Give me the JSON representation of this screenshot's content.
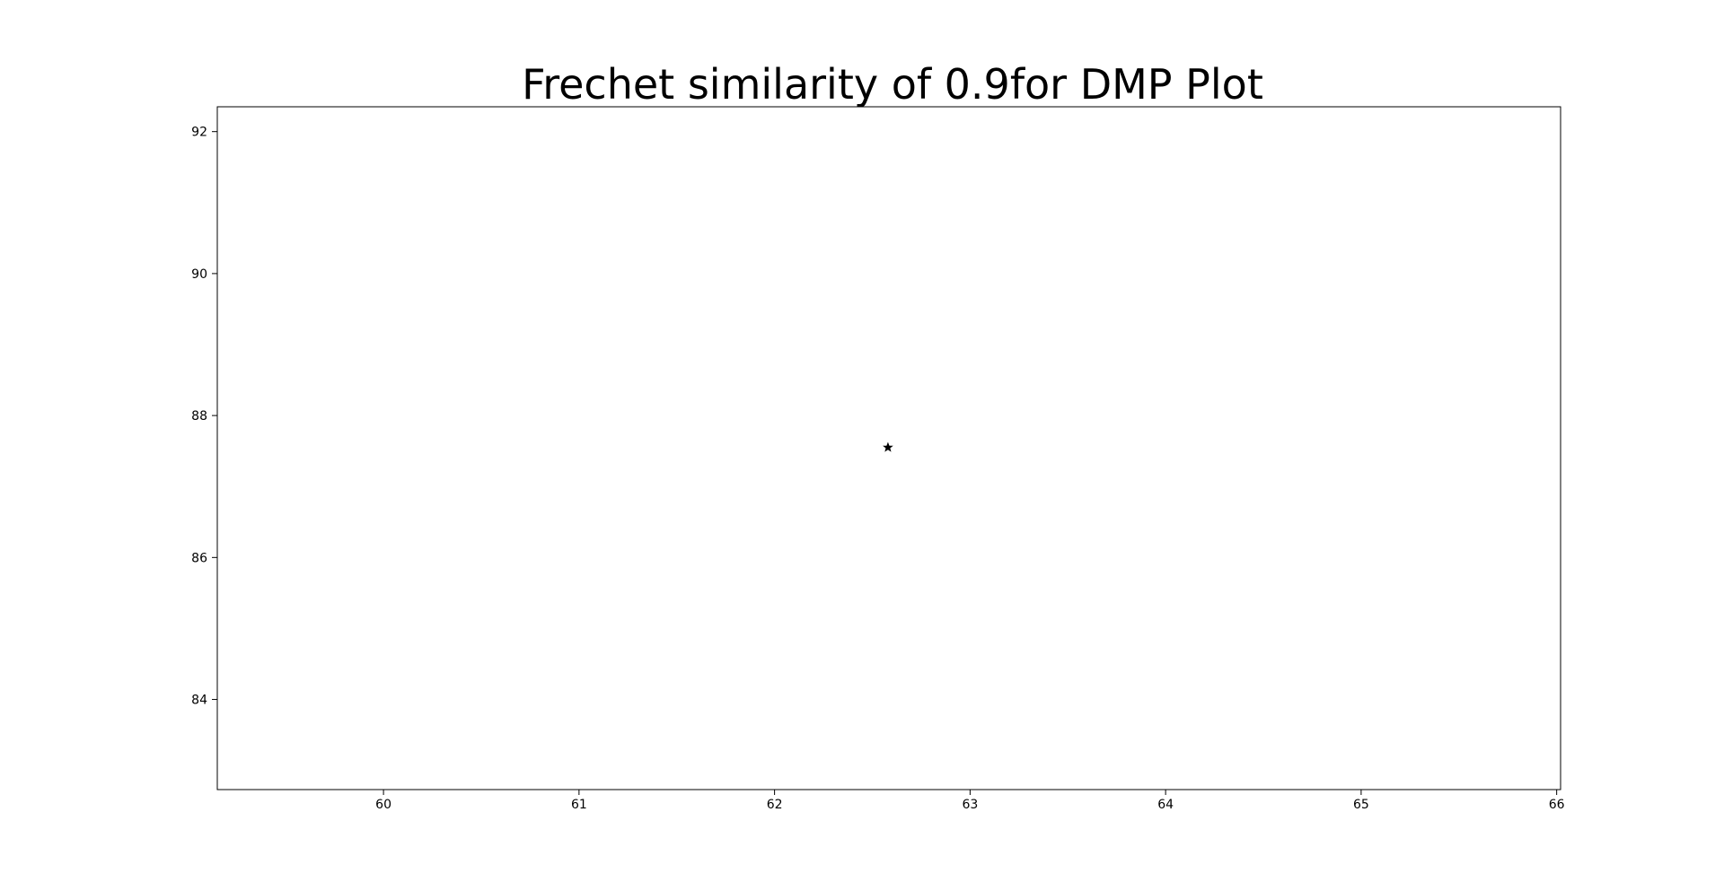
{
  "chart_data": {
    "type": "scatter",
    "title": "Frechet similarity of 0.9for DMP Plot",
    "xlabel": "",
    "ylabel": "",
    "xlim": [
      59.15,
      66.02
    ],
    "ylim": [
      82.73,
      92.35
    ],
    "x_ticks": [
      60,
      61,
      62,
      63,
      64,
      65,
      66
    ],
    "y_ticks": [
      84,
      86,
      88,
      90,
      92
    ],
    "grid": false,
    "series": [
      {
        "marker": "star",
        "color": "#000000",
        "points": [
          {
            "x": 62.58,
            "y": 87.55
          }
        ]
      }
    ]
  }
}
